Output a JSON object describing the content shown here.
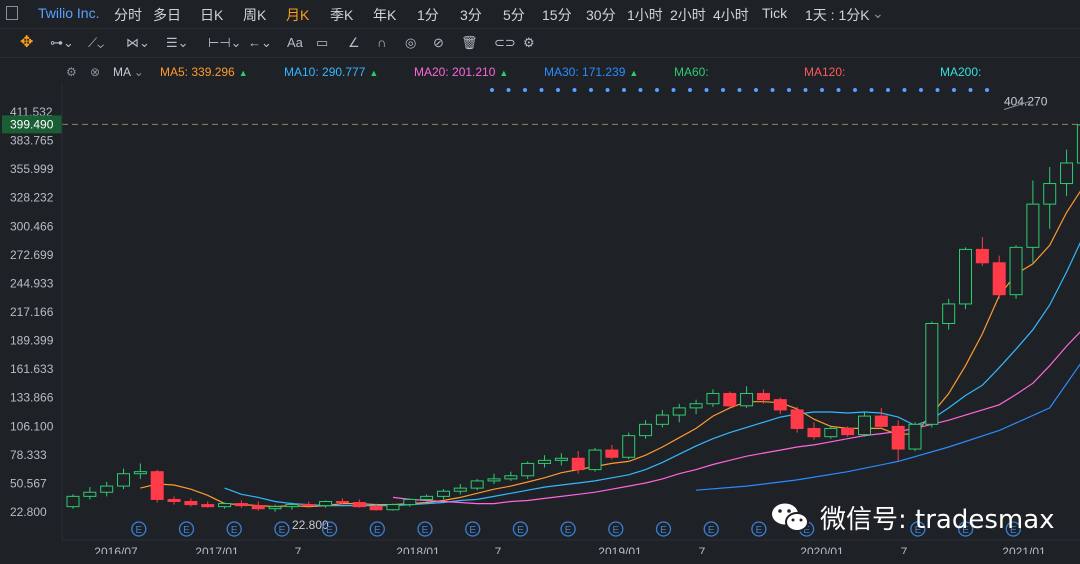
{
  "header": {
    "symbol": "Twilio Inc.",
    "timeframes": [
      "分时",
      "多日",
      "日K",
      "周K",
      "月K",
      "季K",
      "年K",
      "1分",
      "3分",
      "5分",
      "15分",
      "30分",
      "1小时",
      "2小时",
      "4小时",
      "Tick",
      "1天 : 1分K"
    ],
    "active_timeframe": "月K"
  },
  "indicator_bar": {
    "name": "MA",
    "items": [
      {
        "label": "MA5:",
        "value": "339.296",
        "color": "#ff9a2e",
        "arrow": "▲"
      },
      {
        "label": "MA10:",
        "value": "290.777",
        "color": "#33b8ff",
        "arrow": "▲"
      },
      {
        "label": "MA20:",
        "value": "201.210",
        "color": "#ff66dd",
        "arrow": "▲"
      },
      {
        "label": "MA30:",
        "value": "171.239",
        "color": "#2a8cff",
        "arrow": "▲"
      },
      {
        "label": "MA60:",
        "value": "",
        "color": "#2ecc71",
        "arrow": ""
      },
      {
        "label": "MA120:",
        "value": "",
        "color": "#ff5a5a",
        "arrow": ""
      },
      {
        "label": "MA200:",
        "value": "",
        "color": "#33e0e0",
        "arrow": ""
      }
    ]
  },
  "chart_data": {
    "type": "candlestick",
    "price_axis_ticks": [
      "411.532",
      "383.765",
      "355.999",
      "328.232",
      "300.466",
      "272.699",
      "244.933",
      "217.166",
      "189.399",
      "161.633",
      "133.866",
      "106.100",
      "78.333",
      "50.567",
      "22.800"
    ],
    "time_axis_ticks": [
      "2016/07",
      "2017/01",
      "7",
      "2018/01",
      "7",
      "2019/01",
      "7",
      "2020/01",
      "7",
      "2021/01"
    ],
    "current_price": "399.490",
    "high_label": "404.270",
    "low_label": "22.800",
    "earnings_marker": "E",
    "earnings_markers_count": 18,
    "x_start": "2016-07",
    "candles": [
      [
        28,
        40,
        26,
        38
      ],
      [
        38,
        47,
        35,
        42
      ],
      [
        42,
        52,
        38,
        48
      ],
      [
        48,
        65,
        45,
        60
      ],
      [
        60,
        70,
        55,
        62
      ],
      [
        62,
        64,
        32,
        35
      ],
      [
        35,
        38,
        30,
        33
      ],
      [
        33,
        36,
        28,
        30
      ],
      [
        30,
        33,
        27,
        28
      ],
      [
        28,
        32,
        26,
        31
      ],
      [
        31,
        34,
        27,
        29
      ],
      [
        29,
        33,
        24,
        26
      ],
      [
        26,
        30,
        23,
        28
      ],
      [
        28,
        32,
        25,
        30
      ],
      [
        30,
        33,
        27,
        29
      ],
      [
        29,
        34,
        27,
        33
      ],
      [
        33,
        36,
        30,
        32
      ],
      [
        32,
        35,
        27,
        28
      ],
      [
        28,
        31,
        24,
        25
      ],
      [
        25,
        31,
        24,
        30
      ],
      [
        30,
        36,
        28,
        35
      ],
      [
        35,
        40,
        32,
        38
      ],
      [
        38,
        45,
        35,
        43
      ],
      [
        43,
        50,
        40,
        46
      ],
      [
        46,
        55,
        44,
        53
      ],
      [
        53,
        60,
        50,
        55
      ],
      [
        55,
        62,
        53,
        58
      ],
      [
        58,
        72,
        55,
        70
      ],
      [
        70,
        78,
        66,
        73
      ],
      [
        73,
        80,
        68,
        75
      ],
      [
        75,
        82,
        60,
        64
      ],
      [
        64,
        85,
        62,
        83
      ],
      [
        83,
        88,
        74,
        76
      ],
      [
        76,
        100,
        74,
        97
      ],
      [
        97,
        112,
        94,
        108
      ],
      [
        108,
        122,
        105,
        117
      ],
      [
        117,
        128,
        110,
        124
      ],
      [
        124,
        132,
        118,
        128
      ],
      [
        128,
        142,
        125,
        138
      ],
      [
        138,
        140,
        124,
        126
      ],
      [
        126,
        145,
        124,
        138
      ],
      [
        138,
        142,
        128,
        132
      ],
      [
        132,
        134,
        118,
        122
      ],
      [
        122,
        125,
        100,
        104
      ],
      [
        104,
        110,
        93,
        96
      ],
      [
        96,
        106,
        94,
        104
      ],
      [
        104,
        106,
        96,
        98
      ],
      [
        98,
        120,
        96,
        116
      ],
      [
        116,
        124,
        104,
        106
      ],
      [
        106,
        112,
        72,
        84
      ],
      [
        84,
        110,
        82,
        108
      ],
      [
        108,
        208,
        105,
        206
      ],
      [
        206,
        230,
        200,
        225
      ],
      [
        225,
        280,
        220,
        278
      ],
      [
        278,
        290,
        262,
        265
      ],
      [
        265,
        272,
        230,
        234
      ],
      [
        234,
        282,
        230,
        280
      ],
      [
        280,
        345,
        265,
        322
      ],
      [
        322,
        358,
        298,
        342
      ],
      [
        342,
        375,
        330,
        362
      ],
      [
        362,
        405,
        355,
        399
      ]
    ],
    "ma": {
      "MA5": [
        null,
        null,
        null,
        null,
        46,
        50,
        49,
        45,
        39,
        31,
        30,
        29,
        28,
        29,
        28,
        29,
        31,
        31,
        30,
        30,
        31,
        32,
        34,
        37,
        41,
        45,
        48,
        52,
        56,
        61,
        64,
        67,
        70,
        72,
        78,
        86,
        95,
        104,
        116,
        124,
        130,
        130,
        129,
        123,
        113,
        106,
        104,
        104,
        104,
        98,
        99,
        118,
        138,
        165,
        196,
        233,
        254,
        264,
        282,
        314,
        339
      ],
      "MA10": [
        null,
        null,
        null,
        null,
        null,
        null,
        null,
        null,
        null,
        46,
        40,
        37,
        33,
        31,
        30,
        29,
        29,
        29,
        29,
        29,
        30,
        31,
        32,
        34,
        35,
        38,
        41,
        44,
        47,
        49,
        51,
        53,
        56,
        59,
        64,
        71,
        79,
        87,
        94,
        100,
        105,
        110,
        115,
        118,
        120,
        120,
        119,
        120,
        119,
        115,
        107,
        113,
        124,
        136,
        146,
        163,
        181,
        200,
        224,
        256,
        291
      ],
      "MA20": [
        null,
        null,
        null,
        null,
        null,
        null,
        null,
        null,
        null,
        null,
        null,
        null,
        null,
        null,
        null,
        null,
        null,
        null,
        null,
        37,
        35,
        34,
        33,
        32,
        31,
        31,
        33,
        34,
        36,
        38,
        40,
        42,
        45,
        48,
        51,
        55,
        60,
        64,
        69,
        73,
        77,
        80,
        83,
        86,
        88,
        91,
        94,
        97,
        99,
        101,
        104,
        108,
        112,
        117,
        122,
        127,
        137,
        148,
        165,
        184,
        201
      ],
      "MA30": [
        null,
        null,
        null,
        null,
        null,
        null,
        null,
        null,
        null,
        null,
        null,
        null,
        null,
        null,
        null,
        null,
        null,
        null,
        null,
        null,
        null,
        null,
        null,
        null,
        null,
        null,
        null,
        null,
        null,
        null,
        null,
        null,
        null,
        null,
        null,
        null,
        null,
        null,
        null,
        null,
        null,
        null,
        null,
        null,
        null,
        null,
        null,
        null,
        null,
        null,
        null,
        null,
        null,
        null,
        null,
        null,
        null,
        null,
        null,
        null,
        171
      ]
    }
  }
}
